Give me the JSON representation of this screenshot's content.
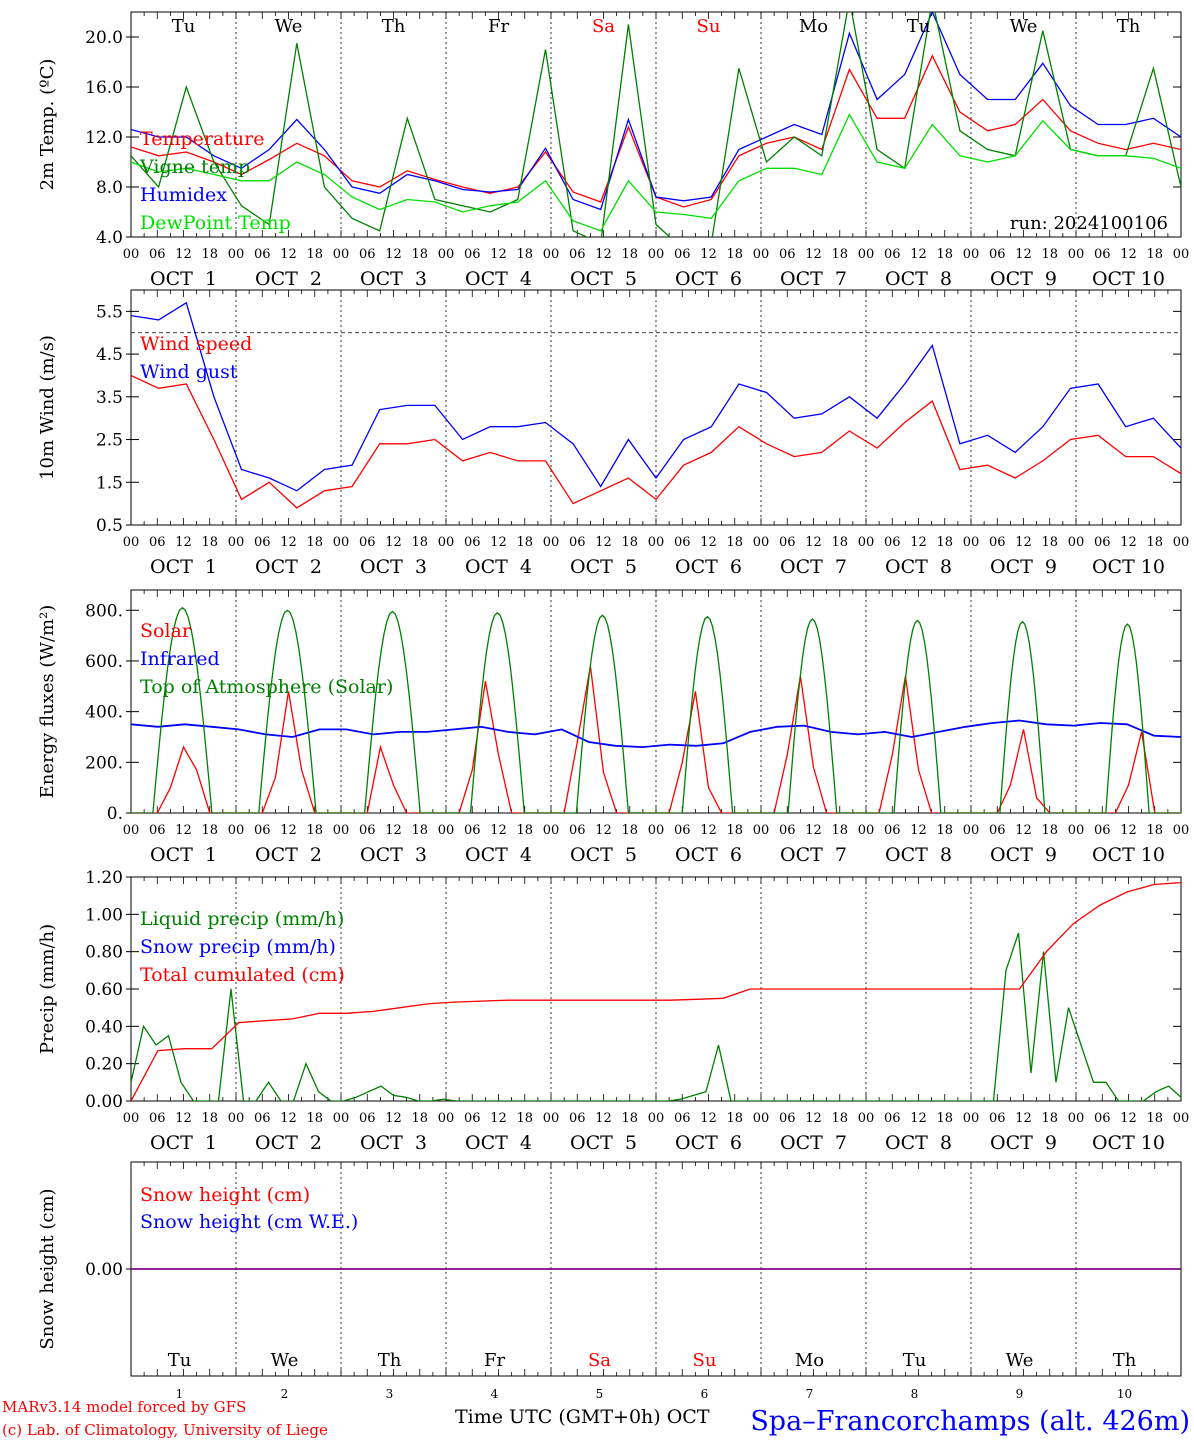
{
  "days": {
    "weekdays": [
      "Tu",
      "We",
      "Th",
      "Fr",
      "Sa",
      "Su",
      "Mo",
      "Tu",
      "We",
      "Th"
    ],
    "weekday_colors": [
      "#000000",
      "#000000",
      "#000000",
      "#000000",
      "#ff0000",
      "#ff0000",
      "#000000",
      "#000000",
      "#000000",
      "#000000"
    ],
    "date_labels": [
      "OCT  1",
      "OCT  2",
      "OCT  3",
      "OCT  4",
      "OCT  5",
      "OCT  6",
      "OCT  7",
      "OCT  8",
      "OCT  9",
      "OCT 10"
    ],
    "day_numbers": [
      "1",
      "2",
      "3",
      "4",
      "5",
      "6",
      "7",
      "8",
      "9",
      "10"
    ],
    "hour_ticks": [
      "00",
      "06",
      "12",
      "18"
    ],
    "end_tick": "00"
  },
  "footer": {
    "model_credit": "MARv3.14 model forced by GFS",
    "lab_credit": "(c) Lab. of Climatology, University of Liege",
    "time_axis_label": "Time UTC (GMT+0h) OCT",
    "station": "Spa–Francorchamps (alt. 426m)"
  },
  "colors": {
    "red": "#ff0000",
    "green": "#008000",
    "blue": "#0000ff",
    "lime": "#00e000",
    "purple": "#800080"
  },
  "chart_data": [
    {
      "id": "temp",
      "type": "line",
      "ylabel": "2m Temp. (ºC)",
      "ylim": [
        4,
        22
      ],
      "yticks": [
        "4.0",
        "8.0",
        "12.0",
        "16.0",
        "20.0"
      ],
      "ytick_values": [
        4,
        8,
        12,
        16,
        20
      ],
      "x": "hours since Oct 1 00 UTC, 6-hourly",
      "annotation": "run: 2024100106",
      "legend": [
        "Temperature",
        "Vigne temp",
        "Humidex",
        "DewPoint Temp"
      ],
      "series": [
        {
          "name": "Temperature",
          "color": "red",
          "values": [
            11.2,
            10.5,
            10.8,
            10.0,
            9.0,
            10.2,
            11.5,
            10.5,
            8.5,
            8.0,
            9.3,
            8.6,
            8.0,
            7.5,
            8.0,
            10.8,
            7.6,
            6.8,
            12.8,
            7.2,
            6.4,
            7.0,
            10.5,
            11.5,
            12.0,
            11.0,
            17.4,
            13.5,
            13.5,
            18.5,
            14.0,
            12.5,
            13.0,
            15.0,
            12.5,
            11.5,
            11.0,
            11.5,
            11.0
          ]
        },
        {
          "name": "Humidex",
          "color": "blue",
          "values": [
            12.6,
            12.0,
            12.0,
            10.5,
            9.5,
            11.0,
            13.4,
            11.0,
            8.0,
            7.5,
            9.0,
            8.5,
            7.8,
            7.6,
            7.8,
            11.1,
            7.0,
            6.2,
            13.4,
            7.2,
            6.9,
            7.2,
            11.0,
            12.0,
            13.0,
            12.2,
            20.3,
            15.0,
            17.0,
            22.0,
            17.0,
            15.0,
            15.0,
            17.9,
            14.5,
            13.0,
            13.0,
            13.5,
            12.0
          ]
        },
        {
          "name": "Vigne temp",
          "color": "green",
          "values": [
            10.5,
            8.0,
            16.0,
            10.0,
            6.5,
            5.0,
            19.5,
            8.0,
            5.5,
            4.5,
            13.5,
            7.0,
            6.5,
            6.0,
            7.0,
            19.0,
            4.5,
            3.5,
            21.0,
            5.0,
            3.0,
            3.5,
            17.5,
            10.0,
            12.0,
            10.5,
            23.0,
            11.0,
            9.5,
            23.0,
            12.5,
            11.0,
            10.5,
            20.5,
            11.0,
            10.5,
            10.5,
            17.5,
            8.0
          ]
        },
        {
          "name": "DewPoint Temp",
          "color": "lime",
          "values": [
            10.0,
            9.2,
            9.5,
            9.0,
            8.5,
            8.5,
            10.0,
            9.0,
            7.2,
            6.2,
            7.0,
            6.8,
            6.0,
            6.5,
            6.8,
            8.5,
            5.3,
            4.5,
            8.5,
            6.0,
            5.8,
            5.5,
            8.5,
            9.5,
            9.5,
            9.0,
            13.8,
            10.0,
            9.5,
            13.0,
            10.5,
            10.0,
            10.5,
            13.3,
            11.0,
            10.5,
            10.5,
            10.3,
            9.5
          ]
        }
      ],
      "reference_lines": []
    },
    {
      "id": "wind",
      "type": "line",
      "ylabel": "10m Wind (m/s)",
      "ylim": [
        0.5,
        6.0
      ],
      "yticks": [
        "0.5",
        "1.5",
        "2.5",
        "3.5",
        "4.5",
        "5.5"
      ],
      "ytick_values": [
        0.5,
        1.5,
        2.5,
        3.5,
        4.5,
        5.5
      ],
      "legend": [
        "Wind speed",
        "Wind gust"
      ],
      "series": [
        {
          "name": "Wind speed",
          "color": "red",
          "values": [
            4.0,
            3.7,
            3.8,
            2.5,
            1.1,
            1.5,
            0.9,
            1.3,
            1.4,
            2.4,
            2.4,
            2.5,
            2.0,
            2.2,
            2.0,
            2.0,
            1.0,
            1.3,
            1.6,
            1.1,
            1.9,
            2.2,
            2.8,
            2.4,
            2.1,
            2.2,
            2.7,
            2.3,
            2.9,
            3.4,
            1.8,
            1.9,
            1.6,
            2.0,
            2.5,
            2.6,
            2.1,
            2.1,
            1.7
          ]
        },
        {
          "name": "Wind gust",
          "color": "blue",
          "values": [
            5.4,
            5.3,
            5.7,
            3.5,
            1.8,
            1.6,
            1.3,
            1.8,
            1.9,
            3.2,
            3.3,
            3.3,
            2.5,
            2.8,
            2.8,
            2.9,
            2.4,
            1.4,
            2.5,
            1.6,
            2.5,
            2.8,
            3.8,
            3.6,
            3.0,
            3.1,
            3.5,
            3.0,
            3.8,
            4.7,
            2.4,
            2.6,
            2.2,
            2.8,
            3.7,
            3.8,
            2.8,
            3.0,
            2.3
          ]
        }
      ],
      "reference_lines": [
        5.0
      ]
    },
    {
      "id": "energy",
      "type": "line",
      "ylabel": "Energy fluxes (W/m²)",
      "ylim": [
        0,
        880
      ],
      "yticks": [
        "0.",
        "200.",
        "400.",
        "600.",
        "800."
      ],
      "ytick_values": [
        0,
        200,
        400,
        600,
        800
      ],
      "legend": [
        "Solar",
        "Infrared",
        "Top of Atmosphere (Solar)"
      ],
      "series": [
        {
          "name": "Solar",
          "color": "red",
          "values": [
            0,
            0,
            0,
            100,
            260,
            170,
            0,
            0,
            0,
            0,
            0,
            140,
            480,
            170,
            0,
            0,
            0,
            0,
            0,
            260,
            110,
            0,
            0,
            0,
            0,
            0,
            170,
            520,
            230,
            0,
            0,
            0,
            0,
            0,
            280,
            580,
            160,
            0,
            0,
            0,
            0,
            0,
            200,
            480,
            100,
            0,
            0,
            0,
            0,
            0,
            230,
            540,
            180,
            0,
            0,
            0,
            0,
            0,
            230,
            540,
            170,
            0,
            0,
            0,
            0,
            0,
            0,
            110,
            330,
            60,
            0,
            0,
            0,
            0,
            0,
            0,
            110,
            320,
            0,
            0,
            0
          ]
        },
        {
          "name": "Infrared",
          "color": "blue",
          "values": [
            350,
            340,
            350,
            340,
            330,
            310,
            300,
            330,
            330,
            310,
            320,
            320,
            330,
            340,
            320,
            310,
            330,
            280,
            265,
            260,
            270,
            265,
            275,
            320,
            340,
            345,
            320,
            310,
            320,
            300,
            320,
            340,
            355,
            365,
            350,
            345,
            355,
            350,
            305,
            300
          ]
        },
        {
          "name": "Top of Atmosphere (Solar)",
          "color": "green",
          "sun": [
            {
              "rise": 5.0,
              "set": 18.5,
              "peak": 810
            },
            {
              "rise": 5.2,
              "set": 18.3,
              "peak": 800
            },
            {
              "rise": 5.4,
              "set": 18.1,
              "peak": 795
            },
            {
              "rise": 5.6,
              "set": 17.9,
              "peak": 790
            },
            {
              "rise": 5.8,
              "set": 17.7,
              "peak": 780
            },
            {
              "rise": 6.0,
              "set": 17.5,
              "peak": 775
            },
            {
              "rise": 6.2,
              "set": 17.3,
              "peak": 765
            },
            {
              "rise": 6.4,
              "set": 17.1,
              "peak": 760
            },
            {
              "rise": 6.6,
              "set": 16.9,
              "peak": 755
            },
            {
              "rise": 6.8,
              "set": 16.7,
              "peak": 745
            }
          ]
        }
      ],
      "reference_lines": []
    },
    {
      "id": "precip",
      "type": "line",
      "ylabel": "Precip (mm/h)",
      "ylim": [
        0,
        1.2
      ],
      "yticks": [
        "0.00",
        "0.20",
        "0.40",
        "0.60",
        "0.80",
        "1.00",
        "1.20"
      ],
      "ytick_values": [
        0,
        0.2,
        0.4,
        0.6,
        0.8,
        1.0,
        1.2
      ],
      "legend": [
        "Liquid precip (mm/h)",
        "Snow precip (mm/h)",
        "Total cumulated (cm)"
      ],
      "series": [
        {
          "name": "Liquid precip (mm/h)",
          "color": "green",
          "values": [
            0.1,
            0.4,
            0.3,
            0.35,
            0.1,
            0,
            0,
            0,
            0.6,
            0,
            0,
            0.1,
            0,
            0,
            0.2,
            0.05,
            0,
            0,
            0.02,
            0.05,
            0.08,
            0.03,
            0.02,
            0,
            0,
            0.01,
            0,
            0,
            0,
            0,
            0,
            0,
            0,
            0,
            0,
            0,
            0,
            0,
            0,
            0,
            0,
            0,
            0,
            0,
            0.01,
            0.03,
            0.05,
            0.3,
            0,
            0,
            0,
            0,
            0,
            0,
            0,
            0,
            0,
            0,
            0,
            0,
            0,
            0,
            0,
            0,
            0,
            0,
            0,
            0,
            0,
            0,
            0.7,
            0.9,
            0.15,
            0.8,
            0.1,
            0.5,
            0.3,
            0.1,
            0.1,
            0,
            0,
            0,
            0.05,
            0.08,
            0.02
          ]
        },
        {
          "name": "Snow precip (mm/h)",
          "color": "blue",
          "values": []
        },
        {
          "name": "Total cumulated (cm)",
          "color": "red",
          "values": [
            0,
            0.27,
            0.28,
            0.28,
            0.42,
            0.43,
            0.44,
            0.47,
            0.47,
            0.48,
            0.5,
            0.52,
            0.53,
            0.535,
            0.54,
            0.54,
            0.54,
            0.54,
            0.54,
            0.54,
            0.54,
            0.545,
            0.55,
            0.6,
            0.6,
            0.6,
            0.6,
            0.6,
            0.6,
            0.6,
            0.6,
            0.6,
            0.6,
            0.6,
            0.8,
            0.95,
            1.05,
            1.12,
            1.16,
            1.17
          ]
        }
      ],
      "reference_lines": []
    },
    {
      "id": "snow",
      "type": "line",
      "ylabel": "Snow height (cm)",
      "yticks": [
        "0.00"
      ],
      "ytick_values": [
        0
      ],
      "ylim": [
        -1,
        1
      ],
      "legend": [
        "Snow height (cm)",
        "Snow height (cm W.E.)"
      ],
      "series": [
        {
          "name": "Snow height (cm)",
          "color": "red",
          "values": [
            0,
            0
          ]
        },
        {
          "name": "Snow height (cm W.E.)",
          "color": "blue",
          "values": [
            0,
            0
          ]
        }
      ],
      "reference_lines": []
    }
  ]
}
